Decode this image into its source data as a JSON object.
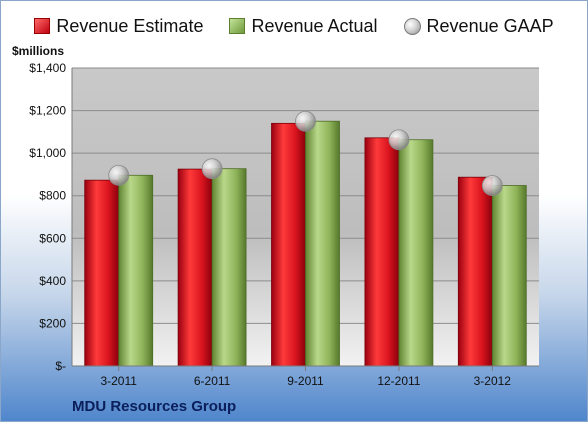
{
  "legend": {
    "estimate": "Revenue Estimate",
    "actual": "Revenue Actual",
    "gaap": "Revenue GAAP"
  },
  "unit_label": "$millions",
  "company": "MDU Resources Group",
  "chart_data": {
    "type": "bar",
    "categories": [
      "3-2011",
      "6-2011",
      "9-2011",
      "12-2011",
      "3-2012"
    ],
    "series": [
      {
        "name": "Revenue Estimate",
        "values": [
          873,
          925,
          1140,
          1072,
          887
        ],
        "color": "#d9141e"
      },
      {
        "name": "Revenue Actual",
        "values": [
          896,
          927,
          1150,
          1063,
          848
        ],
        "color": "#8fb45a"
      },
      {
        "name": "Revenue GAAP",
        "values": [
          896,
          927,
          1150,
          1063,
          848
        ],
        "marker": "sphere",
        "color": "#c8c8c8"
      }
    ],
    "ylabel": "$millions",
    "ylim": [
      0,
      1400
    ],
    "yticks": [
      {
        "value": 0,
        "label": "$-"
      },
      {
        "value": 200,
        "label": "$200"
      },
      {
        "value": 400,
        "label": "$400"
      },
      {
        "value": 600,
        "label": "$600"
      },
      {
        "value": 800,
        "label": "$800"
      },
      {
        "value": 1000,
        "label": "$1,000"
      },
      {
        "value": 1200,
        "label": "$1,200"
      },
      {
        "value": 1400,
        "label": "$1,400"
      }
    ],
    "grid": true,
    "legend_position": "top"
  }
}
